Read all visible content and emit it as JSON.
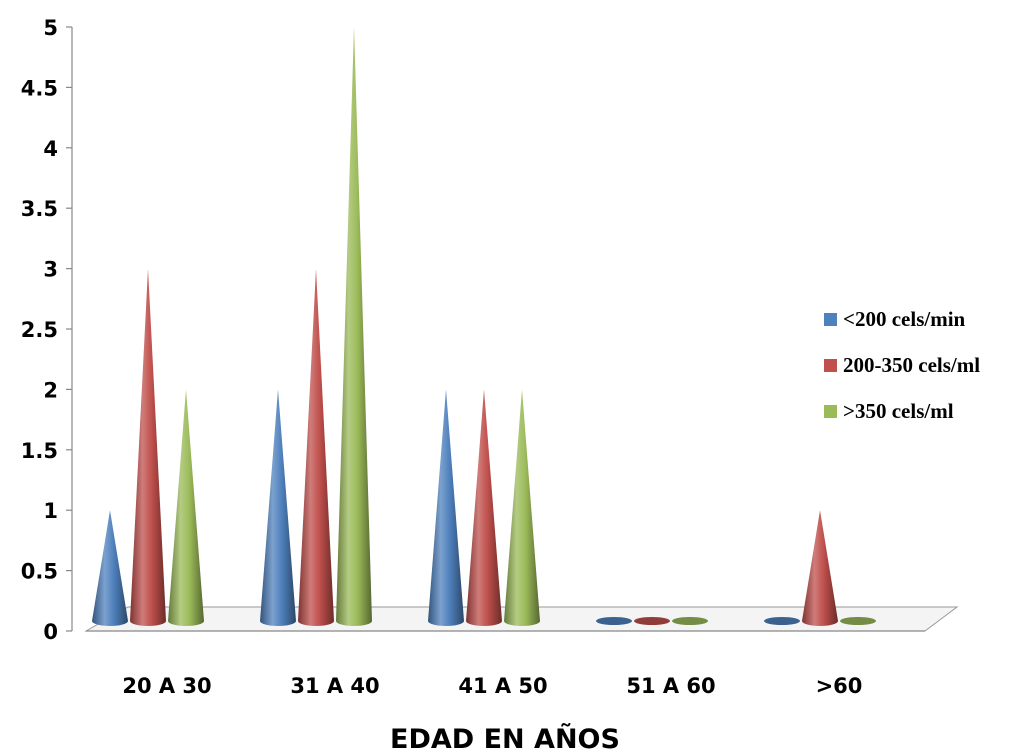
{
  "chart_data": {
    "type": "bar",
    "bar_shape": "cone",
    "title": "",
    "xlabel": "EDAD EN AÑOS",
    "ylabel": "",
    "ylim": [
      0,
      5
    ],
    "yticks": [
      "0",
      "0.5",
      "1",
      "1.5",
      "2",
      "2.5",
      "3",
      "3.5",
      "4",
      "4.5",
      "5"
    ],
    "categories": [
      "20 A 30",
      "31 A 40",
      "41 A 50",
      "51 A 60",
      ">60"
    ],
    "series": [
      {
        "name": "<200 cels/min",
        "color": "#4f81bd",
        "values": [
          1,
          2,
          2,
          0,
          0
        ]
      },
      {
        "name": "200-350 cels/ml",
        "color": "#c0504d",
        "values": [
          3,
          3,
          2,
          0,
          1
        ]
      },
      {
        "name": ">350 cels/ml",
        "color": "#9bbb59",
        "values": [
          2,
          5,
          2,
          0,
          0
        ]
      }
    ],
    "legend_position": "right",
    "grid": false
  }
}
